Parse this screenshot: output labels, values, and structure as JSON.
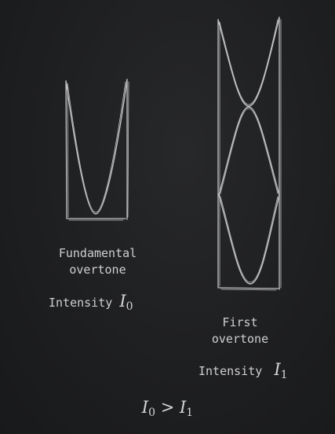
{
  "fundamental": {
    "label_line1": "Fundamental",
    "label_line2": "overtone",
    "intensity_word": "Intensity",
    "intensity_symbol": "I",
    "intensity_subscript": "0"
  },
  "first_overtone": {
    "label_line1": "First",
    "label_line2": "overtone",
    "intensity_word": "Intensity",
    "intensity_symbol": "I",
    "intensity_subscript": "1"
  },
  "relation": {
    "left_symbol": "I",
    "left_subscript": "0",
    "operator": ">",
    "right_symbol": "I",
    "right_subscript": "1"
  },
  "colors": {
    "board": "#1c1d1f",
    "chalk": "#d0d0d0"
  }
}
